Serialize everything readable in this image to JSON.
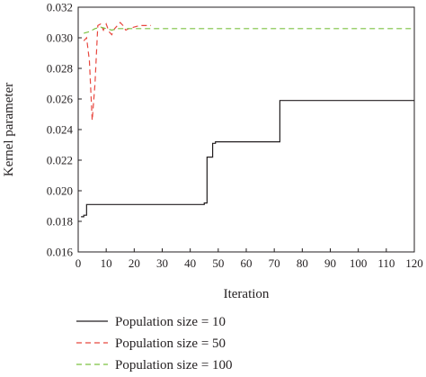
{
  "chart_data": {
    "type": "line",
    "title": "",
    "xlabel": "Iteration",
    "ylabel": "Kernel parameter",
    "xlim": [
      0,
      120
    ],
    "ylim": [
      0.016,
      0.032
    ],
    "x_ticks": [
      0,
      10,
      20,
      30,
      40,
      50,
      60,
      70,
      80,
      90,
      100,
      110,
      120
    ],
    "y_ticks": [
      0.016,
      0.018,
      0.02,
      0.022,
      0.024,
      0.026,
      0.028,
      0.03,
      0.032
    ],
    "y_tick_labels": [
      "0.016",
      "0.018",
      "0.020",
      "0.022",
      "0.024",
      "0.026",
      "0.028",
      "0.030",
      "0.032"
    ],
    "grid": false,
    "legend_position": "bottom",
    "series": [
      {
        "name": "Population size = 10",
        "color": "#231f20",
        "dash": "solid",
        "step": true,
        "points": [
          [
            1,
            0.0183
          ],
          [
            2,
            0.0184
          ],
          [
            3,
            0.0191
          ],
          [
            45,
            0.0191
          ],
          [
            45,
            0.0192
          ],
          [
            46,
            0.0222
          ],
          [
            47,
            0.0222
          ],
          [
            48,
            0.0231
          ],
          [
            49,
            0.0231
          ],
          [
            49,
            0.0232
          ],
          [
            71,
            0.0232
          ],
          [
            72,
            0.0259
          ],
          [
            120,
            0.0259
          ]
        ]
      },
      {
        "name": "Population size = 50",
        "color": "#e8473f",
        "dash": "dashed",
        "step": false,
        "points": [
          [
            2,
            0.0298
          ],
          [
            3,
            0.03
          ],
          [
            4,
            0.0285
          ],
          [
            5,
            0.0246
          ],
          [
            6,
            0.027
          ],
          [
            7,
            0.0308
          ],
          [
            8,
            0.0309
          ],
          [
            9,
            0.0305
          ],
          [
            10,
            0.0309
          ],
          [
            11,
            0.0304
          ],
          [
            12,
            0.0302
          ],
          [
            13,
            0.0306
          ],
          [
            14,
            0.0308
          ],
          [
            15,
            0.031
          ],
          [
            16,
            0.0308
          ],
          [
            17,
            0.0305
          ],
          [
            18,
            0.0306
          ],
          [
            20,
            0.0307
          ],
          [
            22,
            0.0308
          ],
          [
            24,
            0.0308
          ],
          [
            26,
            0.0308
          ]
        ]
      },
      {
        "name": "Population size = 100",
        "color": "#7cc242",
        "dash": "dashed",
        "step": false,
        "points": [
          [
            2,
            0.0303
          ],
          [
            4,
            0.0304
          ],
          [
            6,
            0.0306
          ],
          [
            8,
            0.0307
          ],
          [
            10,
            0.0306
          ],
          [
            12,
            0.0305
          ],
          [
            14,
            0.0306
          ],
          [
            16,
            0.0306
          ],
          [
            20,
            0.0306
          ],
          [
            30,
            0.0306
          ],
          [
            60,
            0.0306
          ],
          [
            90,
            0.0306
          ],
          [
            120,
            0.0306
          ]
        ]
      }
    ]
  }
}
